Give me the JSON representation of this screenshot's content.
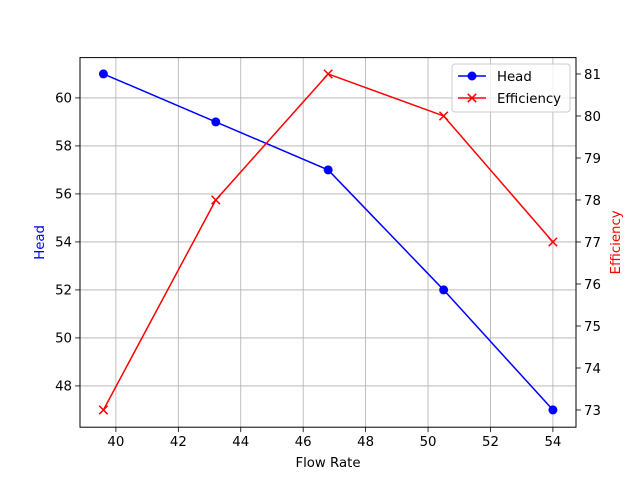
{
  "chart_data": {
    "type": "line",
    "title": "",
    "xlabel": "Flow Rate",
    "ylabel": "Head",
    "ylabel_right": "Efficiency",
    "x": [
      39.6,
      43.2,
      46.8,
      50.5,
      54.0
    ],
    "series": [
      {
        "name": "Head",
        "axis": "left",
        "color": "#0000ff",
        "marker": "circle",
        "values": [
          61,
          59,
          57,
          52,
          47
        ]
      },
      {
        "name": "Efficiency",
        "axis": "right",
        "color": "#ff0000",
        "marker": "x",
        "values": [
          73,
          78,
          81,
          80,
          77
        ]
      }
    ],
    "xlim": [
      38.85,
      54.74
    ],
    "ylim": [
      46.28,
      61.68
    ],
    "ylim_right": [
      72.59,
      81.39
    ],
    "xticks": [
      40,
      42,
      44,
      46,
      48,
      50,
      52,
      54
    ],
    "yticks": [
      48,
      50,
      52,
      54,
      56,
      58,
      60
    ],
    "yticks_right": [
      73,
      74,
      75,
      76,
      77,
      78,
      79,
      80,
      81
    ],
    "grid": true,
    "legend_position": "upper right"
  },
  "colors": {
    "head": "#0000ff",
    "efficiency": "#ff0000",
    "grid": "#b0b0b0",
    "axis": "#000000"
  }
}
